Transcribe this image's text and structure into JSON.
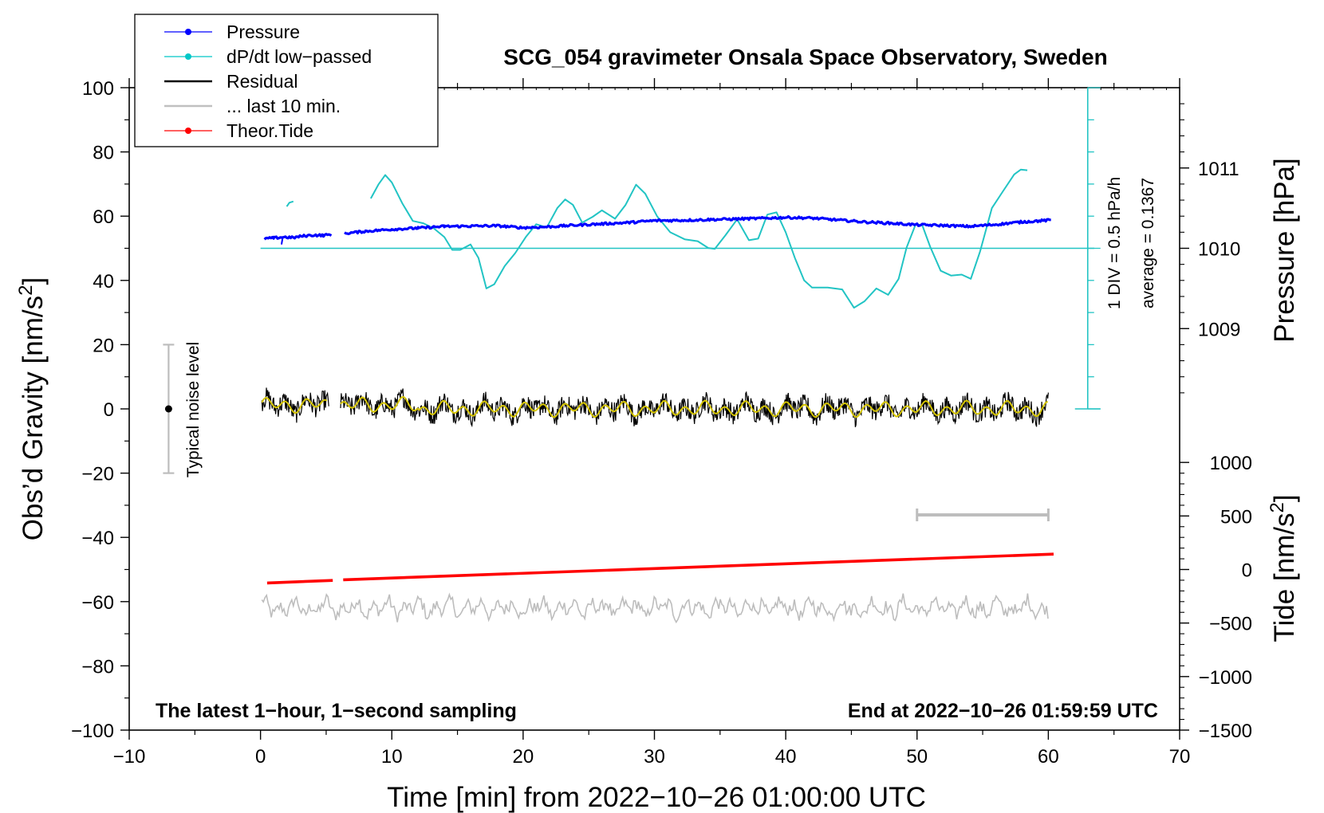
{
  "chart_data": {
    "type": "line",
    "title": "SCG_054 gravimeter Onsala Space Observatory, Sweden",
    "xlabel": "Time [min] from 2022−10−26 01:00:00 UTC",
    "ylabel_left": "Obs’d Gravity [nm/s",
    "ylabel_left_sup": "2",
    "ylabel_left_end": "]",
    "ylabel_right_pressure": "Pressure [hPa]",
    "ylabel_right_tide": "Tide [nm/s",
    "ylabel_right_tide_sup": "2",
    "ylabel_right_tide_end": "]",
    "xlim": [
      -10,
      70
    ],
    "ylim": [
      -100,
      100
    ],
    "x_ticks": [
      "−10",
      "0",
      "10",
      "20",
      "30",
      "40",
      "50",
      "60",
      "70"
    ],
    "y_ticks": [
      "−100",
      "−80",
      "−60",
      "−40",
      "−20",
      "0",
      "20",
      "40",
      "60",
      "80",
      "100"
    ],
    "pressure_ticks": [
      "1009",
      "1010",
      "1011"
    ],
    "tide_ticks": [
      "1000",
      "500",
      "0",
      "−500",
      "−1000",
      "−1500"
    ],
    "pressure_scale_label": "1 DIV = 0.5 hPa/h",
    "pressure_average_label": "average = 0.1367",
    "noise_label": "Typical noise level",
    "bottom_left_note": "The latest 1−hour, 1−second sampling",
    "bottom_right_note": "End at 2022−10−26 01:59:59 UTC",
    "legend": [
      {
        "label": "Pressure",
        "color": "#0000ff",
        "marker": true
      },
      {
        "label": "dP/dt low−passed",
        "color": "#00c8c8",
        "marker": true
      },
      {
        "label": "Residual",
        "color": "#000000",
        "marker": false
      },
      {
        "label": "... last 10 min.",
        "color": "#c0c0c0",
        "marker": false
      },
      {
        "label": "Theor.Tide",
        "color": "#ff0000",
        "marker": true
      }
    ],
    "colors": {
      "pressure": "#0000ff",
      "dpdt": "#22c4c4",
      "residual": "#000000",
      "residual_smooth": "#d4c400",
      "last10": "#bdbdbd",
      "tide": "#ff0000",
      "noise_bar": "#bdbdbd"
    },
    "series": {
      "pressure_segments": [
        [
          [
            0.3,
            53.0
          ],
          [
            1.0,
            53.2
          ],
          [
            1.8,
            53.5
          ],
          [
            2.5,
            53.3
          ],
          [
            3.2,
            53.8
          ],
          [
            4.0,
            54.1
          ],
          [
            4.8,
            54.0
          ],
          [
            5.4,
            54.3
          ]
        ],
        [
          [
            6.4,
            54.6
          ],
          [
            8,
            55.3
          ],
          [
            10,
            55.9
          ],
          [
            12,
            56.3
          ],
          [
            14,
            56.8
          ],
          [
            16,
            56.9
          ],
          [
            18,
            57.0
          ],
          [
            20,
            56.4
          ],
          [
            22,
            56.7
          ],
          [
            24,
            57.2
          ],
          [
            26,
            57.6
          ],
          [
            28,
            58.0
          ],
          [
            30,
            58.6
          ],
          [
            32,
            58.7
          ],
          [
            34,
            58.9
          ],
          [
            36,
            59.1
          ],
          [
            38,
            59.3
          ],
          [
            40,
            59.6
          ],
          [
            42,
            59.4
          ],
          [
            44,
            58.8
          ],
          [
            46,
            58.2
          ],
          [
            48,
            57.8
          ],
          [
            50,
            57.3
          ],
          [
            52,
            57.1
          ],
          [
            54,
            56.8
          ],
          [
            56,
            57.4
          ],
          [
            58,
            58.2
          ],
          [
            60.3,
            58.8
          ]
        ]
      ],
      "dpdt_segments": [
        [
          [
            2.0,
            63.0
          ],
          [
            2.2,
            64.2
          ],
          [
            2.5,
            64.6
          ]
        ],
        [
          [
            8.4,
            65.5
          ],
          [
            9.0,
            70
          ],
          [
            9.5,
            72.8
          ],
          [
            10.0,
            70.5
          ],
          [
            10.8,
            64
          ],
          [
            11.6,
            58.5
          ],
          [
            12.4,
            57.8
          ],
          [
            13.2,
            56.2
          ],
          [
            14.0,
            53.5
          ],
          [
            14.6,
            49.5
          ],
          [
            15.2,
            49.5
          ],
          [
            16.0,
            51.2
          ],
          [
            16.6,
            47
          ],
          [
            17.2,
            37.5
          ],
          [
            17.8,
            38.8
          ],
          [
            18.6,
            44.5
          ],
          [
            19.4,
            48.5
          ],
          [
            20.2,
            53.5
          ],
          [
            21.0,
            57.5
          ],
          [
            21.8,
            56.5
          ],
          [
            22.6,
            62.5
          ],
          [
            23.2,
            65.2
          ],
          [
            23.8,
            63.5
          ],
          [
            24.5,
            58
          ],
          [
            25.3,
            59.8
          ],
          [
            26.0,
            61.8
          ],
          [
            27.0,
            59.2
          ],
          [
            27.8,
            63.5
          ],
          [
            28.6,
            69.8
          ],
          [
            29.3,
            67
          ],
          [
            30.2,
            60
          ],
          [
            31.2,
            55
          ],
          [
            32.3,
            52.8
          ],
          [
            33.3,
            52.2
          ],
          [
            34.1,
            50.1
          ],
          [
            34.6,
            49.8
          ],
          [
            35.4,
            54
          ],
          [
            36.3,
            59
          ],
          [
            37.2,
            52.5
          ],
          [
            37.9,
            53
          ],
          [
            38.6,
            60.5
          ],
          [
            39.3,
            61.2
          ],
          [
            40.0,
            55
          ],
          [
            40.7,
            47
          ],
          [
            41.4,
            40
          ],
          [
            42.0,
            37.8
          ],
          [
            43.2,
            37.8
          ],
          [
            44.3,
            37.2
          ],
          [
            45.2,
            31.5
          ],
          [
            46.0,
            33.5
          ],
          [
            46.9,
            37.5
          ],
          [
            47.8,
            35.5
          ],
          [
            48.6,
            40.5
          ],
          [
            49.2,
            50.2
          ],
          [
            49.9,
            57.5
          ],
          [
            50.4,
            57.2
          ],
          [
            51.0,
            50.5
          ],
          [
            51.8,
            43
          ],
          [
            52.6,
            41.5
          ],
          [
            53.4,
            41.8
          ],
          [
            54.1,
            40.5
          ],
          [
            54.8,
            49
          ],
          [
            55.7,
            62.5
          ],
          [
            56.5,
            67.5
          ],
          [
            57.4,
            73
          ],
          [
            57.9,
            74.5
          ],
          [
            58.4,
            74.3
          ]
        ]
      ],
      "tide_segments": [
        [
          [
            0.5,
            -54.2
          ],
          [
            5.5,
            -53.4
          ]
        ],
        [
          [
            6.3,
            -53.2
          ],
          [
            60.4,
            -45.2
          ]
        ]
      ],
      "residual_segments": [
        [
          0.1,
          5.2
        ],
        [
          6.1,
          60.0
        ]
      ],
      "last10_range": [
        0.1,
        60.0
      ],
      "last10_offset": -62,
      "reference_line_y": 50,
      "pressure_scale_bar": {
        "x": 63.0,
        "y_from": 0,
        "y_to": 100
      },
      "noise_bar": {
        "x": -7.0,
        "y_from": -20,
        "y_to": 20
      },
      "last10_interval": {
        "x_from": 50,
        "x_to": 60,
        "y": -33
      }
    }
  }
}
